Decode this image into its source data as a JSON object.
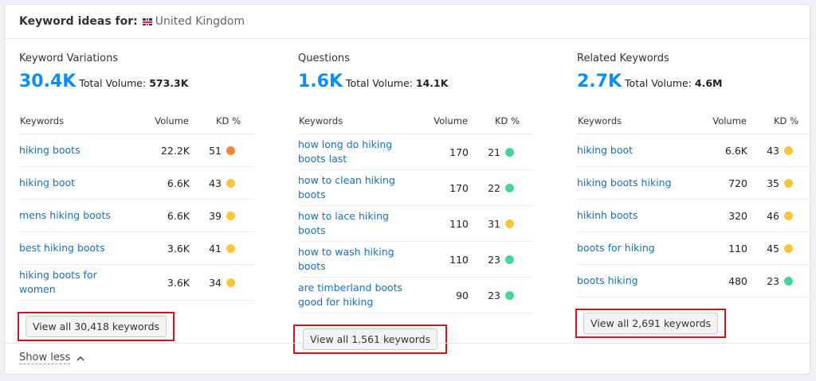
{
  "header": {
    "label": "Keyword ideas for:",
    "country": "United Kingdom"
  },
  "panels": [
    {
      "title": "Keyword Variations",
      "count": "30.4K",
      "total_label": "Total Volume:",
      "total": "573.3K",
      "columns": [
        "Keywords",
        "Volume",
        "KD %"
      ],
      "rows": [
        {
          "keyword": "hiking boots",
          "volume": "22.2K",
          "kd": 51,
          "color": "#f5813f"
        },
        {
          "keyword": "hiking boot",
          "volume": "6.6K",
          "kd": 43,
          "color": "#fcc43e"
        },
        {
          "keyword": "mens hiking boots",
          "volume": "6.6K",
          "kd": 39,
          "color": "#fcc43e"
        },
        {
          "keyword": "best hiking boots",
          "volume": "3.6K",
          "kd": 41,
          "color": "#fcc43e"
        },
        {
          "keyword": "hiking boots for women",
          "volume": "3.6K",
          "kd": 34,
          "color": "#fcc43e"
        }
      ],
      "button": "View all 30,418 keywords"
    },
    {
      "title": "Questions",
      "count": "1.6K",
      "total_label": "Total Volume:",
      "total": "14.1K",
      "columns": [
        "Keywords",
        "Volume",
        "KD %"
      ],
      "rows": [
        {
          "keyword": "how long do hiking boots last",
          "volume": "170",
          "kd": 21,
          "color": "#45d49a"
        },
        {
          "keyword": "how to clean hiking boots",
          "volume": "170",
          "kd": 22,
          "color": "#45d49a"
        },
        {
          "keyword": "how to lace hiking boots",
          "volume": "110",
          "kd": 31,
          "color": "#fcc43e"
        },
        {
          "keyword": "how to wash hiking boots",
          "volume": "110",
          "kd": 23,
          "color": "#45d49a"
        },
        {
          "keyword": "are timberland boots good for hiking",
          "volume": "90",
          "kd": 23,
          "color": "#45d49a"
        }
      ],
      "button": "View all 1,561 keywords"
    },
    {
      "title": "Related Keywords",
      "count": "2.7K",
      "total_label": "Total Volume:",
      "total": "4.6M",
      "columns": [
        "Keywords",
        "Volume",
        "KD %"
      ],
      "rows": [
        {
          "keyword": "hiking boot",
          "volume": "6.6K",
          "kd": 43,
          "color": "#fcc43e"
        },
        {
          "keyword": "hiking boots hiking",
          "volume": "720",
          "kd": 35,
          "color": "#fcc43e"
        },
        {
          "keyword": "hikinh boots",
          "volume": "320",
          "kd": 46,
          "color": "#fcc43e"
        },
        {
          "keyword": "boots for hiking",
          "volume": "110",
          "kd": 45,
          "color": "#fcc43e"
        },
        {
          "keyword": "boots hiking",
          "volume": "480",
          "kd": 23,
          "color": "#45d49a"
        }
      ],
      "button": "View all 2,691 keywords"
    }
  ],
  "footer": {
    "toggle": "Show less"
  }
}
